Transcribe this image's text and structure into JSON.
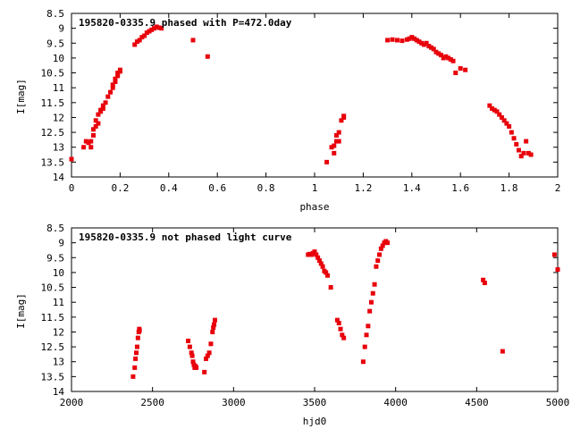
{
  "chart_data": [
    {
      "type": "scatter",
      "title": "195820-0335.9 phased with P=472.0day",
      "xlabel": "phase",
      "ylabel": "I[mag]",
      "xlim": [
        0,
        2
      ],
      "ylim": [
        8.5,
        14
      ],
      "y_inverted": true,
      "xticks": [
        "0",
        "0.2",
        "0.4",
        "0.6",
        "0.8",
        "1",
        "1.2",
        "1.4",
        "1.6",
        "1.8",
        "2"
      ],
      "xtick_values": [
        0,
        0.2,
        0.4,
        0.6,
        0.8,
        1.0,
        1.2,
        1.4,
        1.6,
        1.8,
        2.0
      ],
      "yticks": [
        "8.5",
        "9",
        "9.5",
        "10",
        "10.5",
        "11",
        "11.5",
        "12",
        "12.5",
        "13",
        "13.5",
        "14"
      ],
      "ytick_values": [
        8.5,
        9,
        9.5,
        10,
        10.5,
        11,
        11.5,
        12,
        12.5,
        13,
        13.5,
        14
      ],
      "marker_color": "#e8000b",
      "grid": false,
      "series": [
        {
          "x": [
            0.0,
            0.05,
            0.06,
            0.07,
            0.08,
            0.08,
            0.09,
            0.09,
            0.1,
            0.1,
            0.11,
            0.11,
            0.12,
            0.12,
            0.13,
            0.13,
            0.14,
            0.15,
            0.16,
            0.17,
            0.17,
            0.18,
            0.18,
            0.19,
            0.19,
            0.2,
            0.2,
            0.26,
            0.27,
            0.28,
            0.29,
            0.3,
            0.31,
            0.32,
            0.33,
            0.34,
            0.35,
            0.36,
            0.37,
            0.5,
            0.56,
            1.05,
            1.07,
            1.08,
            1.08,
            1.09,
            1.09,
            1.1,
            1.1,
            1.11,
            1.12,
            1.12,
            1.3,
            1.32,
            1.34,
            1.36,
            1.38,
            1.39,
            1.4,
            1.41,
            1.42,
            1.43,
            1.44,
            1.45,
            1.46,
            1.47,
            1.48,
            1.49,
            1.5,
            1.51,
            1.52,
            1.53,
            1.54,
            1.55,
            1.56,
            1.57,
            1.58,
            1.6,
            1.62,
            1.72,
            1.73,
            1.74,
            1.75,
            1.76,
            1.77,
            1.78,
            1.79,
            1.8,
            1.81,
            1.82,
            1.83,
            1.84,
            1.85,
            1.86,
            1.87,
            1.88,
            1.89
          ],
          "y": [
            13.4,
            13.0,
            12.8,
            12.85,
            13.0,
            12.8,
            12.6,
            12.4,
            12.3,
            12.1,
            12.2,
            11.9,
            11.8,
            11.75,
            11.7,
            11.6,
            11.5,
            11.3,
            11.15,
            11.0,
            10.9,
            10.8,
            10.7,
            10.6,
            10.5,
            10.45,
            10.4,
            9.55,
            9.45,
            9.4,
            9.3,
            9.25,
            9.15,
            9.1,
            9.05,
            9.0,
            8.95,
            8.98,
            9.0,
            9.4,
            9.95,
            13.5,
            13.0,
            13.2,
            12.95,
            12.8,
            12.6,
            12.5,
            12.8,
            12.1,
            11.95,
            12.0,
            9.4,
            9.38,
            9.4,
            9.42,
            9.38,
            9.35,
            9.3,
            9.35,
            9.4,
            9.45,
            9.5,
            9.55,
            9.5,
            9.6,
            9.65,
            9.7,
            9.8,
            9.85,
            9.9,
            10.0,
            9.95,
            10.0,
            10.05,
            10.1,
            10.5,
            10.35,
            10.4,
            11.6,
            11.7,
            11.75,
            11.8,
            11.9,
            12.0,
            12.1,
            12.2,
            12.3,
            12.5,
            12.7,
            12.9,
            13.1,
            13.3,
            13.2,
            12.8,
            13.2,
            13.25
          ]
        }
      ]
    },
    {
      "type": "scatter",
      "title": "195820-0335.9 not phased light curve",
      "xlabel": "hjd0",
      "ylabel": "I[mag]",
      "xlim": [
        2000,
        5000
      ],
      "ylim": [
        8.5,
        14
      ],
      "y_inverted": true,
      "xticks": [
        "2000",
        "2500",
        "3000",
        "3500",
        "4000",
        "4500",
        "5000"
      ],
      "xtick_values": [
        2000,
        2500,
        3000,
        3500,
        4000,
        4500,
        5000
      ],
      "yticks": [
        "8.5",
        "9",
        "9.5",
        "10",
        "10.5",
        "11",
        "11.5",
        "12",
        "12.5",
        "13",
        "13.5",
        "14"
      ],
      "ytick_values": [
        8.5,
        9,
        9.5,
        10,
        10.5,
        11,
        11.5,
        12,
        12.5,
        13,
        13.5,
        14
      ],
      "marker_color": "#e8000b",
      "grid": false,
      "series": [
        {
          "x": [
            2380,
            2390,
            2395,
            2400,
            2405,
            2410,
            2415,
            2418,
            2420,
            2720,
            2730,
            2740,
            2745,
            2750,
            2755,
            2760,
            2765,
            2770,
            2820,
            2830,
            2840,
            2850,
            2860,
            2870,
            2875,
            2880,
            2885,
            3460,
            3470,
            3480,
            3490,
            3500,
            3510,
            3520,
            3530,
            3540,
            3550,
            3560,
            3570,
            3580,
            3600,
            3640,
            3650,
            3660,
            3670,
            3680,
            3800,
            3810,
            3820,
            3830,
            3840,
            3850,
            3860,
            3870,
            3880,
            3890,
            3900,
            3910,
            3920,
            3930,
            3940,
            3950,
            4540,
            4550,
            4660,
            4980,
            5000
          ],
          "y": [
            13.5,
            13.2,
            12.9,
            12.7,
            12.5,
            12.2,
            12.0,
            11.9,
            11.95,
            12.3,
            12.5,
            12.7,
            12.8,
            13.0,
            13.1,
            13.2,
            13.15,
            13.2,
            13.35,
            12.9,
            12.8,
            12.7,
            12.4,
            12.0,
            11.85,
            11.75,
            11.6,
            9.4,
            9.38,
            9.4,
            9.35,
            9.3,
            9.4,
            9.5,
            9.6,
            9.7,
            9.8,
            9.95,
            10.0,
            10.1,
            10.5,
            11.6,
            11.7,
            11.9,
            12.1,
            12.2,
            13.0,
            12.5,
            12.1,
            11.8,
            11.3,
            11.0,
            10.7,
            10.4,
            9.8,
            9.6,
            9.4,
            9.2,
            9.1,
            9.0,
            8.95,
            9.0,
            10.25,
            10.35,
            12.65,
            9.4,
            9.9
          ]
        }
      ]
    }
  ]
}
